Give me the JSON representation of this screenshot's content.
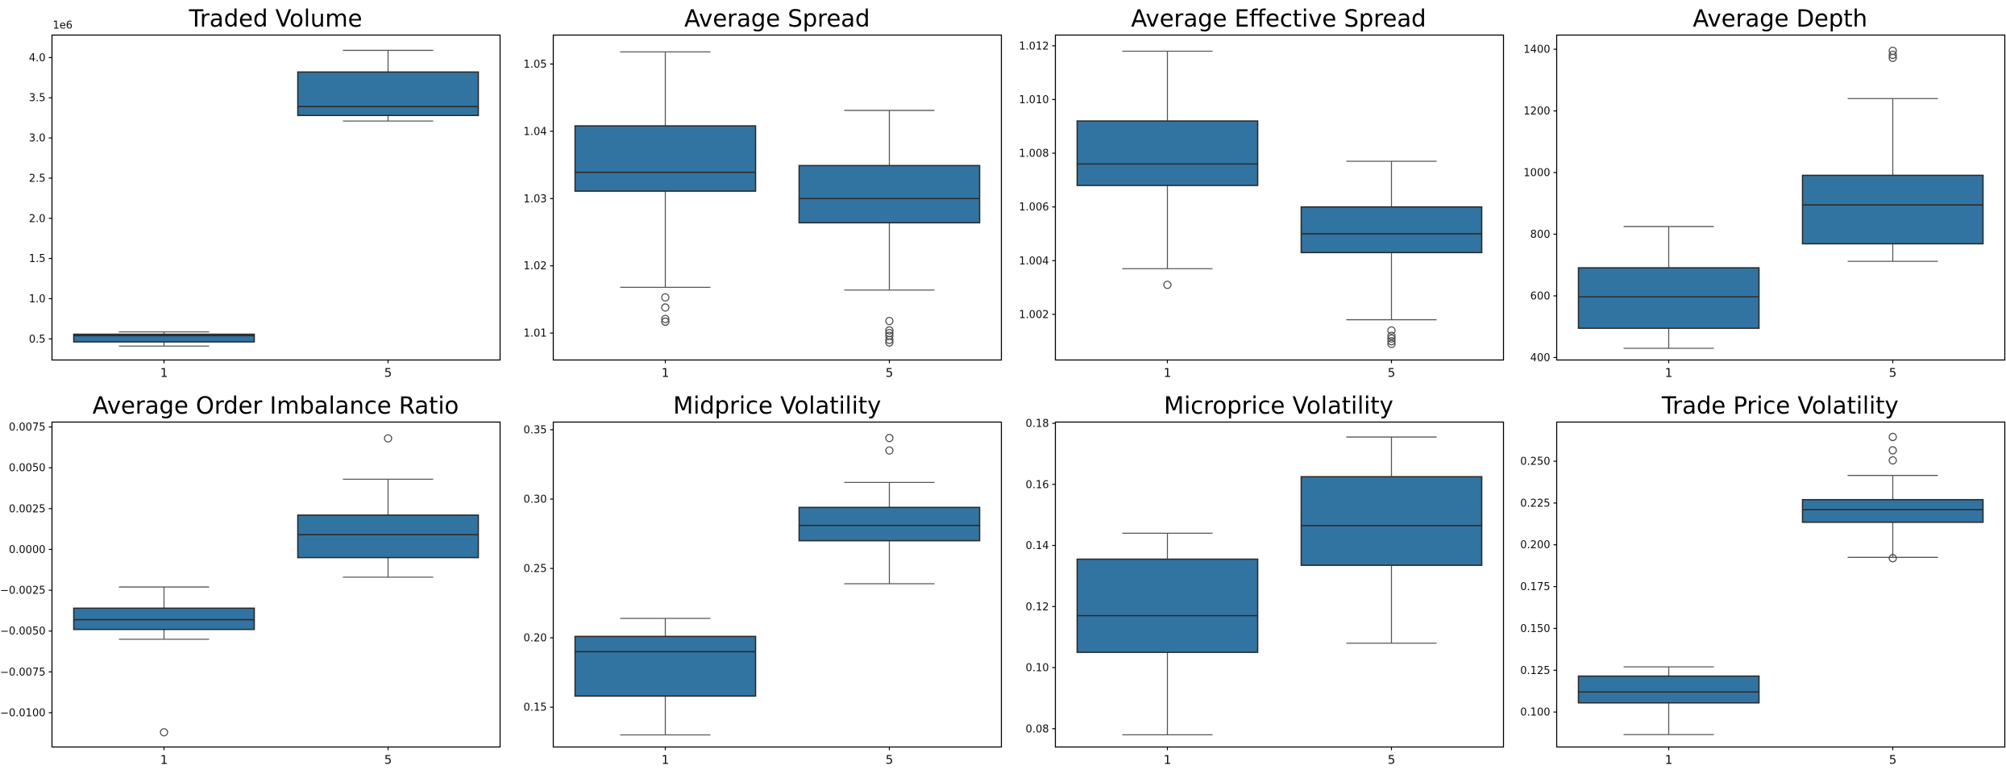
{
  "figure": {
    "background": "#ffffff"
  },
  "style": {
    "box_fill": "#3274a1",
    "box_edge": "#2b2b2b",
    "median_color": "#2b2b2b",
    "whisker_color": "#565656",
    "flier_edge": "#4a4a4a",
    "spine_color": "#000000",
    "tick_label_color": "#0d0d0d"
  },
  "x_categories": [
    "1",
    "5"
  ],
  "chart_data": [
    {
      "type": "boxplot",
      "title": "Traded Volume",
      "offset_label": "1e6",
      "ylim": [
        236800,
        4280000
      ],
      "yticks": [
        {
          "v": 500000,
          "label": "0.5"
        },
        {
          "v": 1000000,
          "label": "1.0"
        },
        {
          "v": 1500000,
          "label": "1.5"
        },
        {
          "v": 2000000,
          "label": "2.0"
        },
        {
          "v": 2500000,
          "label": "2.5"
        },
        {
          "v": 3000000,
          "label": "3.0"
        },
        {
          "v": 3500000,
          "label": "3.5"
        },
        {
          "v": 4000000,
          "label": "4.0"
        }
      ],
      "series": [
        {
          "x": "1",
          "whislo": 410000,
          "q1": 462000,
          "med": 540000,
          "q3": 557000,
          "whishi": 587000,
          "fliers": []
        },
        {
          "x": "5",
          "whislo": 3210000,
          "q1": 3280000,
          "med": 3390000,
          "q3": 3820000,
          "whishi": 4090000,
          "fliers": []
        }
      ]
    },
    {
      "type": "boxplot",
      "title": "Average Spread",
      "offset_label": null,
      "ylim": [
        1.006,
        1.0543
      ],
      "yticks": [
        {
          "v": 1.01,
          "label": "1.01"
        },
        {
          "v": 1.02,
          "label": "1.02"
        },
        {
          "v": 1.03,
          "label": "1.03"
        },
        {
          "v": 1.04,
          "label": "1.04"
        },
        {
          "v": 1.05,
          "label": "1.05"
        }
      ],
      "series": [
        {
          "x": "1",
          "whislo": 1.0168,
          "q1": 1.0311,
          "med": 1.0339,
          "q3": 1.0408,
          "whishi": 1.0518,
          "fliers": [
            1.0153,
            1.0138,
            1.0121,
            1.0117
          ]
        },
        {
          "x": "5",
          "whislo": 1.0164,
          "q1": 1.0264,
          "med": 1.03,
          "q3": 1.0349,
          "whishi": 1.0431,
          "fliers": [
            1.0118,
            1.0104,
            1.01,
            1.0096,
            1.009,
            1.0086
          ]
        }
      ]
    },
    {
      "type": "boxplot",
      "title": "Average Effective Spread",
      "offset_label": null,
      "ylim": [
        1.0003,
        1.0124
      ],
      "yticks": [
        {
          "v": 1.002,
          "label": "1.002"
        },
        {
          "v": 1.004,
          "label": "1.004"
        },
        {
          "v": 1.006,
          "label": "1.006"
        },
        {
          "v": 1.008,
          "label": "1.008"
        },
        {
          "v": 1.01,
          "label": "1.010"
        },
        {
          "v": 1.012,
          "label": "1.012"
        }
      ],
      "series": [
        {
          "x": "1",
          "whislo": 1.0037,
          "q1": 1.0068,
          "med": 1.0076,
          "q3": 1.0092,
          "whishi": 1.0118,
          "fliers": [
            1.0031
          ]
        },
        {
          "x": "5",
          "whislo": 1.0018,
          "q1": 1.0043,
          "med": 1.005,
          "q3": 1.006,
          "whishi": 1.0077,
          "fliers": [
            1.0014,
            1.0012,
            1.0011,
            1.001,
            1.0009
          ]
        }
      ]
    },
    {
      "type": "boxplot",
      "title": "Average Depth",
      "offset_label": null,
      "ylim": [
        392,
        1446
      ],
      "yticks": [
        {
          "v": 400,
          "label": "400"
        },
        {
          "v": 600,
          "label": "600"
        },
        {
          "v": 800,
          "label": "800"
        },
        {
          "v": 1000,
          "label": "1000"
        },
        {
          "v": 1200,
          "label": "1200"
        },
        {
          "v": 1400,
          "label": "1400"
        }
      ],
      "series": [
        {
          "x": "1",
          "whislo": 430,
          "q1": 495,
          "med": 597,
          "q3": 691,
          "whishi": 825,
          "fliers": []
        },
        {
          "x": "5",
          "whislo": 712,
          "q1": 769,
          "med": 895,
          "q3": 991,
          "whishi": 1240,
          "fliers": [
            1372,
            1382,
            1395
          ]
        }
      ]
    },
    {
      "type": "boxplot",
      "title": "Average Order Imbalance Ratio",
      "offset_label": null,
      "ylim": [
        -0.0121,
        0.0078
      ],
      "yticks": [
        {
          "v": 0.0075,
          "label": "0.0075"
        },
        {
          "v": 0.005,
          "label": "0.0050"
        },
        {
          "v": 0.0025,
          "label": "0.0025"
        },
        {
          "v": 0.0,
          "label": "0.0000"
        },
        {
          "v": -0.0025,
          "label": "−0.0025"
        },
        {
          "v": -0.005,
          "label": "−0.0050"
        },
        {
          "v": -0.0075,
          "label": "−0.0075"
        },
        {
          "v": -0.01,
          "label": "−0.0100"
        }
      ],
      "series": [
        {
          "x": "1",
          "whislo": -0.0055,
          "q1": -0.0049,
          "med": -0.0043,
          "q3": -0.0036,
          "whishi": -0.0023,
          "fliers": [
            -0.0112
          ]
        },
        {
          "x": "5",
          "whislo": -0.0017,
          "q1": -0.0005,
          "med": 0.0009,
          "q3": 0.0021,
          "whishi": 0.0043,
          "fliers": [
            0.0068
          ]
        }
      ]
    },
    {
      "type": "boxplot",
      "title": "Midprice Volatility",
      "offset_label": null,
      "ylim": [
        0.1213,
        0.3555
      ],
      "yticks": [
        {
          "v": 0.15,
          "label": "0.15"
        },
        {
          "v": 0.2,
          "label": "0.20"
        },
        {
          "v": 0.25,
          "label": "0.25"
        },
        {
          "v": 0.3,
          "label": "0.30"
        },
        {
          "v": 0.35,
          "label": "0.35"
        }
      ],
      "series": [
        {
          "x": "1",
          "whislo": 0.13,
          "q1": 0.158,
          "med": 0.19,
          "q3": 0.201,
          "whishi": 0.214,
          "fliers": []
        },
        {
          "x": "5",
          "whislo": 0.239,
          "q1": 0.27,
          "med": 0.281,
          "q3": 0.294,
          "whishi": 0.312,
          "fliers": [
            0.335,
            0.344
          ]
        }
      ]
    },
    {
      "type": "boxplot",
      "title": "Microprice Volatility",
      "offset_label": null,
      "ylim": [
        0.074,
        0.1804
      ],
      "yticks": [
        {
          "v": 0.08,
          "label": "0.08"
        },
        {
          "v": 0.1,
          "label": "0.10"
        },
        {
          "v": 0.12,
          "label": "0.12"
        },
        {
          "v": 0.14,
          "label": "0.14"
        },
        {
          "v": 0.16,
          "label": "0.16"
        },
        {
          "v": 0.18,
          "label": "0.18"
        }
      ],
      "series": [
        {
          "x": "1",
          "whislo": 0.078,
          "q1": 0.105,
          "med": 0.117,
          "q3": 0.1355,
          "whishi": 0.144,
          "fliers": []
        },
        {
          "x": "5",
          "whislo": 0.108,
          "q1": 0.1335,
          "med": 0.1465,
          "q3": 0.1625,
          "whishi": 0.1755,
          "fliers": []
        }
      ]
    },
    {
      "type": "boxplot",
      "title": "Trade Price Volatility",
      "offset_label": null,
      "ylim": [
        0.0791,
        0.2734
      ],
      "yticks": [
        {
          "v": 0.1,
          "label": "0.100"
        },
        {
          "v": 0.125,
          "label": "0.125"
        },
        {
          "v": 0.15,
          "label": "0.150"
        },
        {
          "v": 0.175,
          "label": "0.175"
        },
        {
          "v": 0.2,
          "label": "0.200"
        },
        {
          "v": 0.225,
          "label": "0.225"
        },
        {
          "v": 0.25,
          "label": "0.250"
        }
      ],
      "series": [
        {
          "x": "1",
          "whislo": 0.0865,
          "q1": 0.1055,
          "med": 0.112,
          "q3": 0.1215,
          "whishi": 0.127,
          "fliers": []
        },
        {
          "x": "5",
          "whislo": 0.1925,
          "q1": 0.2135,
          "med": 0.221,
          "q3": 0.227,
          "whishi": 0.2415,
          "fliers": [
            0.192,
            0.2505,
            0.2565,
            0.2645
          ]
        }
      ]
    }
  ]
}
